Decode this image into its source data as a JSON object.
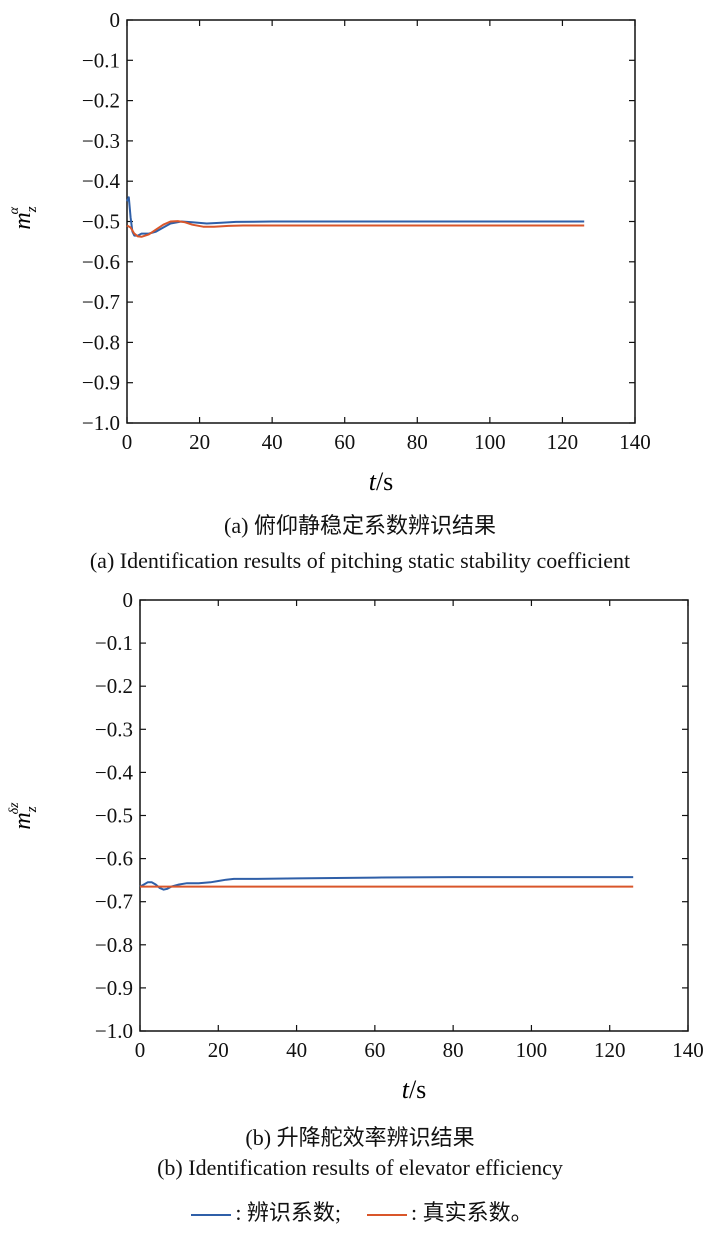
{
  "colors": {
    "identified": "#2f5fa8",
    "true": "#d9562a",
    "axis": "#111111"
  },
  "chart_data": [
    {
      "type": "line",
      "panel": "a",
      "ylabel_main": "m",
      "ylabel_sub": "z",
      "ylabel_sup": "α",
      "xlabel_t": "t",
      "xlabel_unit": "/s",
      "xlim": [
        0,
        140
      ],
      "ylim": [
        -1.0,
        0
      ],
      "xticks": [
        "0",
        "20",
        "40",
        "60",
        "80",
        "100",
        "120",
        "140"
      ],
      "yticks": [
        "0",
        "−0.1",
        "−0.2",
        "−0.3",
        "−0.4",
        "−0.5",
        "−0.6",
        "−0.7",
        "−0.8",
        "−0.9",
        "−1.0"
      ],
      "caption_cn": "(a) 俯仰静稳定系数辨识结果",
      "caption_en": "(a) Identification results of pitching static stability coefficient",
      "series": [
        {
          "key": "identified",
          "x": [
            0,
            0.5,
            1,
            1.5,
            2,
            3,
            4,
            6,
            8,
            10,
            12,
            15,
            18,
            22,
            26,
            30,
            40,
            60,
            80,
            100,
            126
          ],
          "y": [
            -0.45,
            -0.44,
            -0.49,
            -0.525,
            -0.535,
            -0.535,
            -0.53,
            -0.53,
            -0.525,
            -0.515,
            -0.505,
            -0.5,
            -0.502,
            -0.505,
            -0.503,
            -0.501,
            -0.5,
            -0.5,
            -0.5,
            -0.5,
            -0.5
          ]
        },
        {
          "key": "true",
          "x": [
            0,
            1,
            2,
            3,
            4,
            6,
            8,
            10,
            12,
            14,
            16,
            18,
            21,
            24,
            28,
            32,
            40,
            60,
            80,
            100,
            126
          ],
          "y": [
            -0.51,
            -0.515,
            -0.53,
            -0.537,
            -0.538,
            -0.532,
            -0.52,
            -0.508,
            -0.5,
            -0.499,
            -0.502,
            -0.508,
            -0.513,
            -0.513,
            -0.511,
            -0.51,
            -0.51,
            -0.51,
            -0.51,
            -0.51,
            -0.51
          ]
        }
      ]
    },
    {
      "type": "line",
      "panel": "b",
      "ylabel_main": "m",
      "ylabel_sub": "z",
      "ylabel_sup": "δz",
      "xlabel_t": "t",
      "xlabel_unit": "/s",
      "xlim": [
        0,
        140
      ],
      "ylim": [
        -1.0,
        0
      ],
      "xticks": [
        "0",
        "20",
        "40",
        "60",
        "80",
        "100",
        "120",
        "140"
      ],
      "yticks": [
        "0",
        "−0.1",
        "−0.2",
        "−0.3",
        "−0.4",
        "−0.5",
        "−0.6",
        "−0.7",
        "−0.8",
        "−0.9",
        "−1.0"
      ],
      "caption_cn": "(b) 升降舵效率辨识结果",
      "caption_en": "(b) Identification results of elevator efficiency",
      "series": [
        {
          "key": "identified",
          "x": [
            0,
            1,
            2,
            3,
            4,
            5,
            6,
            7,
            8,
            10,
            12,
            15,
            18,
            20,
            22,
            24,
            30,
            40,
            60,
            80,
            100,
            126
          ],
          "y": [
            -0.665,
            -0.66,
            -0.655,
            -0.655,
            -0.66,
            -0.668,
            -0.672,
            -0.67,
            -0.665,
            -0.66,
            -0.657,
            -0.657,
            -0.655,
            -0.652,
            -0.649,
            -0.647,
            -0.647,
            -0.646,
            -0.644,
            -0.643,
            -0.643,
            -0.643
          ]
        },
        {
          "key": "true",
          "x": [
            0,
            20,
            40,
            60,
            80,
            100,
            126
          ],
          "y": [
            -0.665,
            -0.665,
            -0.665,
            -0.665,
            -0.665,
            -0.665,
            -0.665
          ]
        }
      ]
    }
  ],
  "legend": {
    "identified_label": ": 辨识系数;",
    "true_label": ": 真实系数。"
  }
}
